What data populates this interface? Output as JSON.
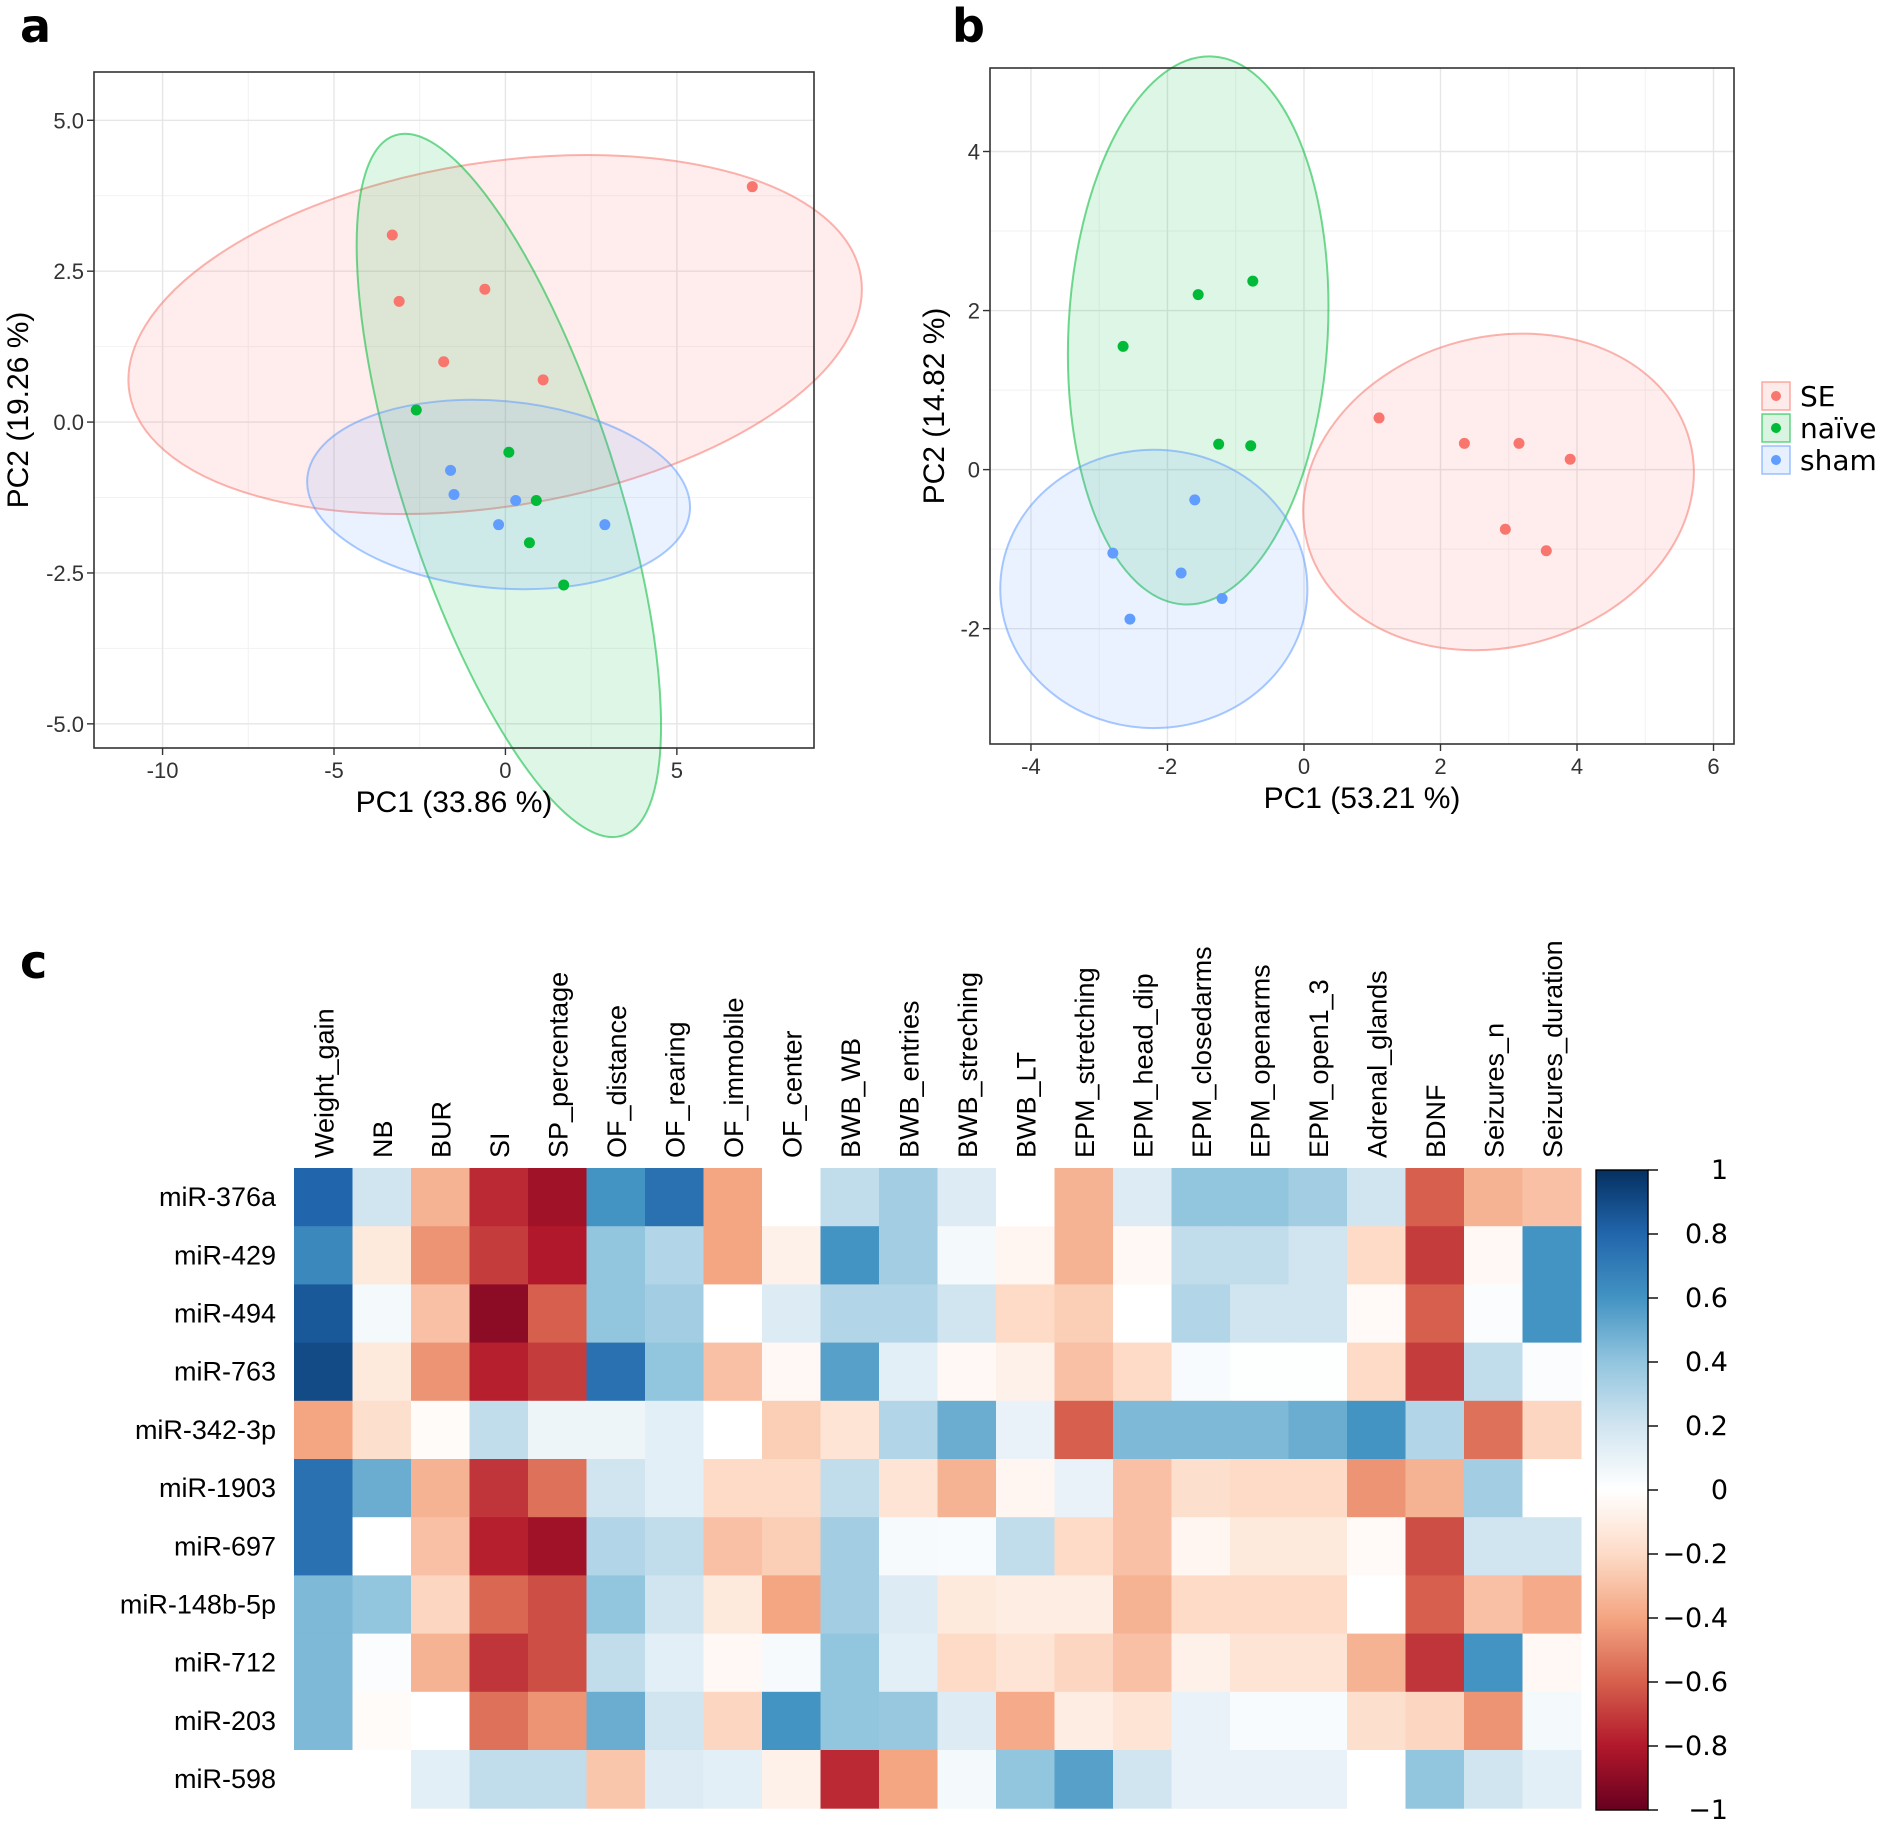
{
  "panels": {
    "a": {
      "label": "a"
    },
    "b": {
      "label": "b"
    },
    "c": {
      "label": "c"
    }
  },
  "chart_data": [
    {
      "type": "scatter",
      "panel": "a",
      "xlabel": "PC1 (33.86 %)",
      "ylabel": "PC2 (19.26 %)",
      "xlim": [
        -12,
        9
      ],
      "ylim": [
        -5.4,
        5.8
      ],
      "xticks": [
        -10,
        -5,
        0,
        5
      ],
      "xtick_labels": [
        "-10",
        "-5",
        "0",
        "5"
      ],
      "yticks": [
        -5,
        -2.5,
        0,
        2.5,
        5
      ],
      "ytick_labels": [
        "-5.0",
        "-2.5",
        "0.0",
        "2.5",
        "5.0"
      ],
      "grid": true,
      "series": [
        {
          "name": "SE",
          "color": "#F8766D",
          "points": [
            [
              -3.3,
              3.1
            ],
            [
              -3.1,
              2.0
            ],
            [
              -0.6,
              2.2
            ],
            [
              -1.8,
              1.0
            ],
            [
              1.1,
              0.7
            ],
            [
              7.2,
              3.9
            ]
          ],
          "ellipse": {
            "cx": -0.3,
            "cy": 1.45,
            "rx": 10.8,
            "ry": 2.85,
            "angle_deg": 9
          }
        },
        {
          "name": "naïve",
          "color": "#00BA38",
          "points": [
            [
              -2.6,
              0.2
            ],
            [
              0.1,
              -0.5
            ],
            [
              0.9,
              -1.3
            ],
            [
              0.7,
              -2.0
            ],
            [
              1.7,
              -2.7
            ]
          ],
          "ellipse": {
            "cx": 0.1,
            "cy": -1.05,
            "rx": 3.1,
            "ry": 6.1,
            "angle_deg": 18
          }
        },
        {
          "name": "sham",
          "color": "#619CFF",
          "points": [
            [
              -1.6,
              -0.8
            ],
            [
              -1.5,
              -1.2
            ],
            [
              0.3,
              -1.3
            ],
            [
              -0.2,
              -1.7
            ],
            [
              2.9,
              -1.7
            ]
          ],
          "ellipse": {
            "cx": -0.2,
            "cy": -1.2,
            "rx": 5.6,
            "ry": 1.55,
            "angle_deg": -5
          }
        }
      ]
    },
    {
      "type": "scatter",
      "panel": "b",
      "xlabel": "PC1 (53.21 %)",
      "ylabel": "PC2 (14.82 %)",
      "xlim": [
        -4.6,
        6.3
      ],
      "ylim": [
        -3.45,
        5.05
      ],
      "xticks": [
        -4,
        -2,
        0,
        2,
        4,
        6
      ],
      "xtick_labels": [
        "-4",
        "-2",
        "0",
        "2",
        "4",
        "6"
      ],
      "yticks": [
        -2,
        0,
        2,
        4
      ],
      "ytick_labels": [
        "-2",
        "0",
        "2",
        "4"
      ],
      "grid": true,
      "series": [
        {
          "name": "SE",
          "color": "#F8766D",
          "points": [
            [
              1.1,
              0.65
            ],
            [
              2.35,
              0.33
            ],
            [
              3.15,
              0.33
            ],
            [
              3.9,
              0.13
            ],
            [
              2.95,
              -0.75
            ],
            [
              3.55,
              -1.02
            ]
          ],
          "ellipse": {
            "cx": 2.85,
            "cy": -0.28,
            "rx": 2.9,
            "ry": 1.95,
            "angle_deg": 15
          }
        },
        {
          "name": "naïve",
          "color": "#00BA38",
          "points": [
            [
              -2.65,
              1.55
            ],
            [
              -1.55,
              2.2
            ],
            [
              -0.75,
              2.37
            ],
            [
              -1.25,
              0.32
            ],
            [
              -0.78,
              0.3
            ]
          ],
          "ellipse": {
            "cx": -1.55,
            "cy": 1.75,
            "rx": 1.9,
            "ry": 3.45,
            "angle_deg": -3
          }
        },
        {
          "name": "sham",
          "color": "#619CFF",
          "points": [
            [
              -2.8,
              -1.05
            ],
            [
              -2.55,
              -1.88
            ],
            [
              -1.8,
              -1.3
            ],
            [
              -1.6,
              -0.38
            ],
            [
              -1.2,
              -1.62
            ]
          ],
          "ellipse": {
            "cx": -2.2,
            "cy": -1.5,
            "rx": 2.25,
            "ry": 1.75,
            "angle_deg": 0
          }
        }
      ]
    },
    {
      "type": "heatmap",
      "panel": "c",
      "columns": [
        "Weight_gain",
        "NB",
        "BUR",
        "SI",
        "SP_percentage",
        "OF_distance",
        "OF_rearing",
        "OF_immobile",
        "OF_center",
        "BWB_WB",
        "BWB_entries",
        "BWB_streching",
        "BWB_LT",
        "EPM_stretching",
        "EPM_head_dip",
        "EPM_closedarms",
        "EPM_openarms",
        "EPM_open1_3",
        "Adrenal_glands",
        "BDNF",
        "Seizures_n",
        "Seizures_duration"
      ],
      "rows": [
        "miR-376a",
        "miR-429",
        "miR-494",
        "miR-763",
        "miR-342-3p",
        "miR-1903",
        "miR-697",
        "miR-148b-5p",
        "miR-712",
        "miR-203",
        "miR-598"
      ],
      "values": [
        [
          0.8,
          0.2,
          -0.35,
          -0.75,
          -0.85,
          0.6,
          0.75,
          -0.4,
          0.0,
          0.25,
          0.35,
          0.15,
          0.0,
          -0.35,
          0.15,
          0.4,
          0.4,
          0.35,
          0.2,
          -0.6,
          -0.35,
          -0.3
        ],
        [
          0.65,
          -0.12,
          -0.45,
          -0.7,
          -0.8,
          0.4,
          0.3,
          -0.4,
          -0.08,
          0.6,
          0.35,
          0.05,
          -0.05,
          -0.35,
          -0.04,
          0.25,
          0.25,
          0.2,
          -0.2,
          -0.7,
          -0.04,
          0.6
        ],
        [
          0.85,
          0.05,
          -0.3,
          -0.9,
          -0.6,
          0.4,
          0.35,
          0.0,
          0.15,
          0.3,
          0.3,
          0.2,
          -0.2,
          -0.25,
          0.0,
          0.3,
          0.2,
          0.2,
          -0.03,
          -0.6,
          0.02,
          0.6
        ],
        [
          0.9,
          -0.12,
          -0.45,
          -0.78,
          -0.7,
          0.75,
          0.4,
          -0.3,
          -0.04,
          0.55,
          0.12,
          -0.04,
          -0.08,
          -0.3,
          -0.2,
          0.03,
          0.01,
          0.01,
          -0.2,
          -0.7,
          0.25,
          0.02
        ],
        [
          -0.4,
          -0.18,
          -0.02,
          0.25,
          0.08,
          0.08,
          0.12,
          0.0,
          -0.25,
          -0.15,
          0.3,
          0.5,
          0.1,
          -0.6,
          0.45,
          0.45,
          0.45,
          0.5,
          0.6,
          0.3,
          -0.55,
          -0.22
        ],
        [
          0.75,
          0.5,
          -0.35,
          -0.72,
          -0.55,
          0.2,
          0.12,
          -0.2,
          -0.2,
          0.25,
          -0.15,
          -0.35,
          -0.05,
          0.1,
          -0.3,
          -0.18,
          -0.2,
          -0.2,
          -0.45,
          -0.35,
          0.35,
          0.0
        ],
        [
          0.75,
          0.0,
          -0.3,
          -0.78,
          -0.85,
          0.3,
          0.25,
          -0.3,
          -0.25,
          0.35,
          0.04,
          0.03,
          0.25,
          -0.2,
          -0.3,
          -0.05,
          -0.12,
          -0.12,
          -0.03,
          -0.65,
          0.2,
          0.2
        ],
        [
          0.45,
          0.4,
          -0.22,
          -0.58,
          -0.65,
          0.4,
          0.2,
          -0.12,
          -0.4,
          0.35,
          0.15,
          -0.12,
          -0.1,
          -0.1,
          -0.35,
          -0.2,
          -0.2,
          -0.2,
          0.0,
          -0.6,
          -0.3,
          -0.38
        ],
        [
          0.45,
          0.02,
          -0.35,
          -0.72,
          -0.65,
          0.25,
          0.12,
          -0.04,
          0.04,
          0.4,
          0.12,
          -0.2,
          -0.15,
          -0.22,
          -0.3,
          -0.08,
          -0.15,
          -0.15,
          -0.35,
          -0.72,
          0.6,
          -0.04
        ],
        [
          0.45,
          -0.02,
          0.0,
          -0.55,
          -0.45,
          0.5,
          0.2,
          -0.22,
          0.6,
          0.4,
          0.38,
          0.15,
          -0.38,
          -0.1,
          -0.15,
          0.1,
          0.03,
          0.03,
          -0.18,
          -0.22,
          -0.45,
          0.05
        ],
        [
          0.0,
          0.0,
          0.12,
          0.25,
          0.25,
          -0.28,
          0.15,
          0.12,
          -0.08,
          -0.75,
          -0.4,
          0.05,
          0.4,
          0.55,
          0.2,
          0.1,
          0.1,
          0.1,
          0.0,
          0.4,
          0.2,
          0.12
        ]
      ],
      "colorbar": {
        "min": -1,
        "max": 1,
        "ticks": [
          1,
          0.8,
          0.6,
          0.4,
          0.2,
          0,
          -0.2,
          -0.4,
          -0.6,
          -0.8,
          -1
        ],
        "tick_labels": [
          "1",
          "0.8",
          "0.6",
          "0.4",
          "0.2",
          "0",
          "−0.2",
          "−0.4",
          "−0.6",
          "−0.8",
          "−1"
        ],
        "stops": [
          [
            -1,
            "#67001F"
          ],
          [
            -0.8,
            "#B2182B"
          ],
          [
            -0.6,
            "#D6604D"
          ],
          [
            -0.4,
            "#F4A582"
          ],
          [
            -0.2,
            "#FDDBC7"
          ],
          [
            0,
            "#FFFFFF"
          ],
          [
            0.2,
            "#D1E5F0"
          ],
          [
            0.4,
            "#92C5DE"
          ],
          [
            0.6,
            "#4393C3"
          ],
          [
            0.8,
            "#2166AC"
          ],
          [
            1,
            "#053061"
          ]
        ]
      }
    }
  ]
}
